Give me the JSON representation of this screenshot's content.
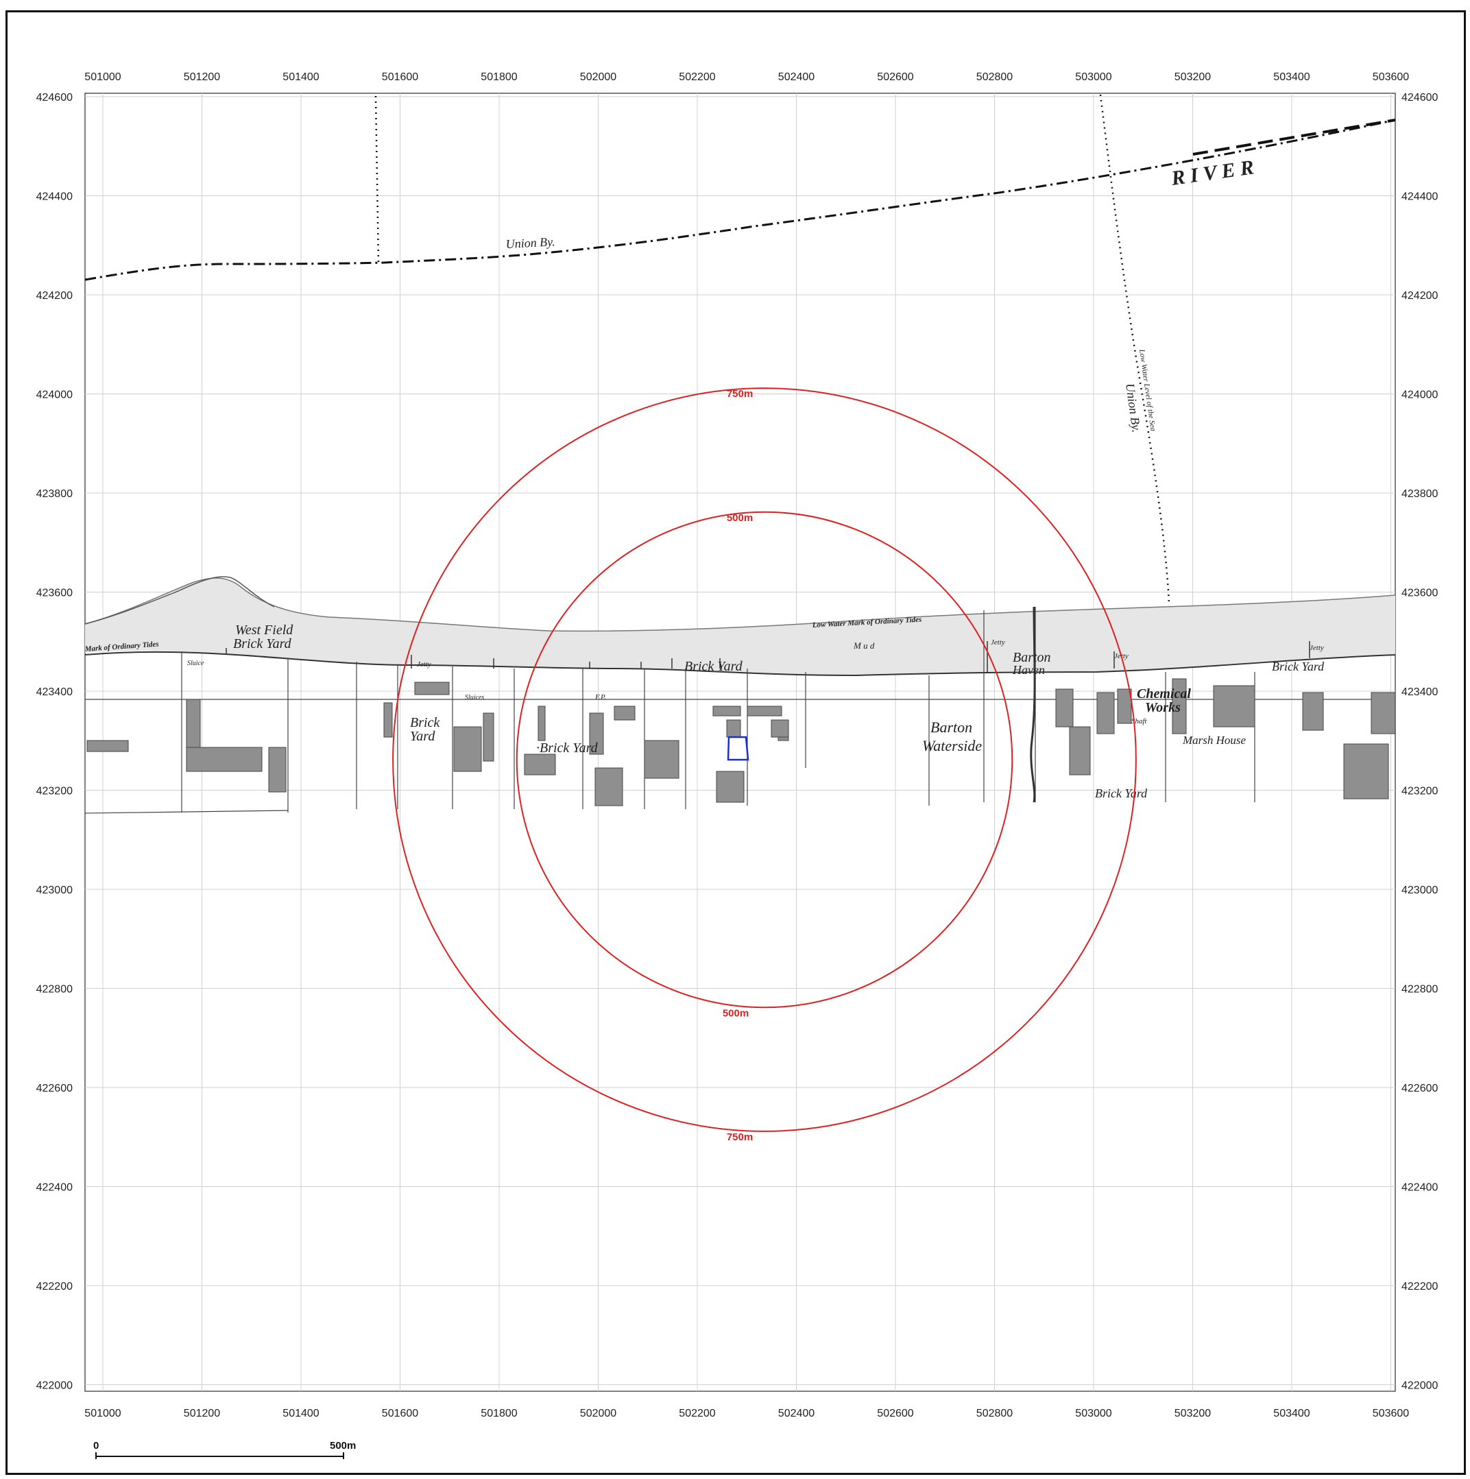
{
  "map": {
    "x_ticks": [
      "501000",
      "501200",
      "501400",
      "501600",
      "501800",
      "502000",
      "502200",
      "502400",
      "502600",
      "502800",
      "503000",
      "503200",
      "503400",
      "503600"
    ],
    "y_ticks": [
      "424600",
      "424400",
      "424200",
      "424000",
      "423800",
      "423600",
      "423400",
      "423200",
      "423000",
      "422800",
      "422600",
      "422400",
      "422200",
      "422000"
    ],
    "buffer_rings": [
      {
        "label": "750m",
        "radius_m": 750
      },
      {
        "label": "500m",
        "radius_m": 500
      }
    ],
    "place_labels": {
      "river": "R   I   V   E   R",
      "union_by_top": "Union By.",
      "union_by_right": "Union By.",
      "low_water_right": "Low Water Level of the Sea",
      "west_field": "West Field",
      "brick_yard_wf": "Brick Yard",
      "mark_tides": "Mark of Ordinary Tides",
      "low_water_mark": "Low Water Mark of Ordinary Tides",
      "mud": "M u d",
      "brick_yard_center": "Brick Yard",
      "brick_yard_lower": "·Brick Yard",
      "brick_yard_left": "Brick",
      "brick_yard_left2": "Yard",
      "barton_haven": "Barton",
      "barton_haven2": "Haven",
      "barton_waterside": "Barton",
      "barton_waterside2": "Waterside",
      "chemical_works": "Chemical",
      "chemical_works2": "Works",
      "marsh_house": "Marsh House",
      "brick_yard_right": "Brick Yard",
      "brick_yard_se": "Brick Yard",
      "jetty": "Jetty",
      "sluice": "Sluice",
      "sluices": "Sluices",
      "shaft": "Shaft",
      "fp": "F.P."
    },
    "colors": {
      "ring": "#e02020",
      "site": "#1a2ed8",
      "grid": "#d0d0d0",
      "building": "#8f8f8f"
    }
  },
  "scale_bar": {
    "start_label": "0",
    "end_label": "500m"
  }
}
